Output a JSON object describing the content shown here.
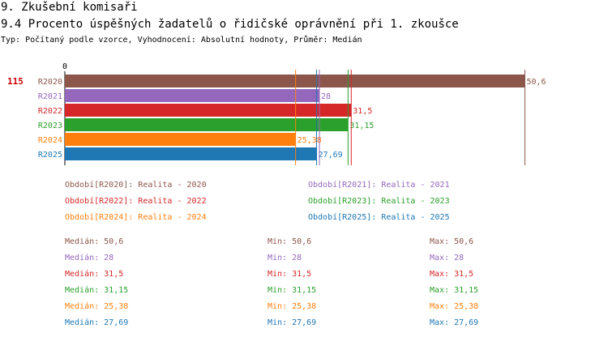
{
  "header": {
    "section": "9. Zkušební komisaři",
    "title": "9.4 Procento úspěšných žadatelů o řidičské oprávnění při 1. zkoušce",
    "meta": "Typ: Počítaný podle vzorce, Vyhodnocení: Absolutní hodnoty, Průměr: Medián"
  },
  "chart_data": {
    "type": "bar",
    "orientation": "horizontal",
    "axis_zero_label": "0",
    "highlight_value": "115",
    "xlim": [
      0,
      53.5
    ],
    "grid": false,
    "categories": [
      "R2020",
      "R2021",
      "R2022",
      "R2023",
      "R2024",
      "R2025"
    ],
    "values": [
      50.6,
      28,
      31.5,
      31.15,
      25.38,
      27.69
    ],
    "value_labels": [
      "50,6",
      "28",
      "31,5",
      "31,15",
      "25,38",
      "27,69"
    ],
    "colors": [
      "#8c564b",
      "#9467bd",
      "#d62728",
      "#2ca02c",
      "#ff7f0e",
      "#1f77b4"
    ]
  },
  "legend": [
    {
      "label": "Období[R2020]: Realita - 2020",
      "color": "#8c564b"
    },
    {
      "label": "Období[R2021]: Realita - 2021",
      "color": "#9467bd"
    },
    {
      "label": "Období[R2022]: Realita - 2022",
      "color": "#d62728"
    },
    {
      "label": "Období[R2023]: Realita - 2023",
      "color": "#2ca02c"
    },
    {
      "label": "Období[R2024]: Realita - 2024",
      "color": "#ff7f0e"
    },
    {
      "label": "Období[R2025]: Realita - 2025",
      "color": "#1f77b4"
    }
  ],
  "stats": [
    {
      "median": "Medián: 50,6",
      "min": "Min: 50,6",
      "max": "Max: 50,6",
      "color": "#8c564b"
    },
    {
      "median": "Medián: 28",
      "min": "Min: 28",
      "max": "Max: 28",
      "color": "#9467bd"
    },
    {
      "median": "Medián: 31,5",
      "min": "Min: 31,5",
      "max": "Max: 31,5",
      "color": "#d62728"
    },
    {
      "median": "Medián: 31,15",
      "min": "Min: 31,15",
      "max": "Max: 31,15",
      "color": "#2ca02c"
    },
    {
      "median": "Medián: 25,38",
      "min": "Min: 25,38",
      "max": "Max: 25,38",
      "color": "#ff7f0e"
    },
    {
      "median": "Medián: 27,69",
      "min": "Min: 27,69",
      "max": "Max: 27,69",
      "color": "#1f77b4"
    }
  ]
}
